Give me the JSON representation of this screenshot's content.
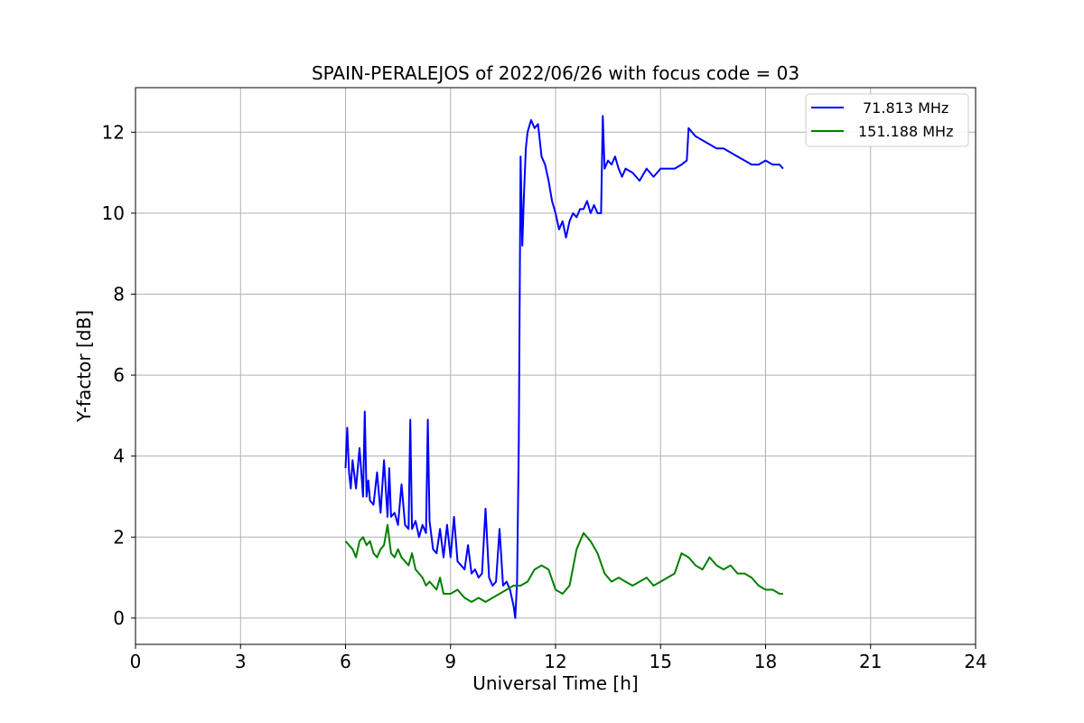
{
  "chart_data": {
    "type": "line",
    "title": "SPAIN-PERALEJOS of 2022/06/26 with focus code = 03",
    "xlabel": "Universal Time [h]",
    "ylabel": "Y-factor [dB]",
    "xlim": [
      0,
      24
    ],
    "ylim": [
      -0.65,
      13.1
    ],
    "xticks": [
      0,
      3,
      6,
      9,
      12,
      15,
      18,
      21,
      24
    ],
    "yticks": [
      0,
      2,
      4,
      6,
      8,
      10,
      12
    ],
    "grid": true,
    "legend_position": "top-right",
    "series": [
      {
        "name": "71.813 MHz",
        "color": "#0000ff",
        "x": [
          6.0,
          6.05,
          6.1,
          6.15,
          6.2,
          6.3,
          6.4,
          6.5,
          6.55,
          6.6,
          6.65,
          6.7,
          6.8,
          6.9,
          7.0,
          7.1,
          7.2,
          7.25,
          7.3,
          7.4,
          7.5,
          7.6,
          7.7,
          7.8,
          7.85,
          7.9,
          8.0,
          8.1,
          8.2,
          8.3,
          8.35,
          8.4,
          8.5,
          8.6,
          8.7,
          8.8,
          8.9,
          9.0,
          9.1,
          9.2,
          9.3,
          9.4,
          9.5,
          9.6,
          9.7,
          9.8,
          9.9,
          10.0,
          10.1,
          10.2,
          10.3,
          10.4,
          10.5,
          10.6,
          10.7,
          10.8,
          10.85,
          10.9,
          10.95,
          11.0,
          11.05,
          11.1,
          11.15,
          11.2,
          11.3,
          11.4,
          11.5,
          11.6,
          11.7,
          11.8,
          11.9,
          12.0,
          12.1,
          12.2,
          12.3,
          12.4,
          12.5,
          12.6,
          12.7,
          12.8,
          12.9,
          13.0,
          13.1,
          13.2,
          13.3,
          13.35,
          13.4,
          13.5,
          13.6,
          13.7,
          13.8,
          13.9,
          14.0,
          14.2,
          14.4,
          14.6,
          14.8,
          15.0,
          15.2,
          15.4,
          15.6,
          15.75,
          15.8,
          15.9,
          16.0,
          16.2,
          16.4,
          16.6,
          16.8,
          17.0,
          17.2,
          17.4,
          17.6,
          17.8,
          18.0,
          18.2,
          18.4,
          18.5
        ],
        "values": [
          3.7,
          4.7,
          3.6,
          3.2,
          3.9,
          3.2,
          4.2,
          3.0,
          5.1,
          3.0,
          3.4,
          2.9,
          2.8,
          3.6,
          2.6,
          3.9,
          2.5,
          3.7,
          2.5,
          2.6,
          2.3,
          3.3,
          2.3,
          2.2,
          4.9,
          2.2,
          2.4,
          2.0,
          2.3,
          2.1,
          4.9,
          2.4,
          1.7,
          1.6,
          2.2,
          1.5,
          2.3,
          1.5,
          2.5,
          1.4,
          1.3,
          1.2,
          1.8,
          1.1,
          1.2,
          1.0,
          1.1,
          2.7,
          1.0,
          0.8,
          0.9,
          2.2,
          0.8,
          0.9,
          0.7,
          0.3,
          0.0,
          0.9,
          4.3,
          11.4,
          9.2,
          10.5,
          11.6,
          12.0,
          12.3,
          12.1,
          12.2,
          11.4,
          11.2,
          10.8,
          10.3,
          10.0,
          9.6,
          9.8,
          9.4,
          9.8,
          10.0,
          9.9,
          10.1,
          10.1,
          10.3,
          10.0,
          10.2,
          10.0,
          10.0,
          12.4,
          11.1,
          11.3,
          11.2,
          11.4,
          11.1,
          10.9,
          11.1,
          11.0,
          10.8,
          11.1,
          10.9,
          11.1,
          11.1,
          11.1,
          11.2,
          11.3,
          12.1,
          12.0,
          11.9,
          11.8,
          11.7,
          11.6,
          11.6,
          11.5,
          11.4,
          11.3,
          11.2,
          11.2,
          11.3,
          11.2,
          11.2,
          11.1
        ]
      },
      {
        "name": "151.188 MHz",
        "color": "#008000",
        "x": [
          6.0,
          6.1,
          6.2,
          6.3,
          6.4,
          6.5,
          6.6,
          6.7,
          6.8,
          6.9,
          7.0,
          7.1,
          7.2,
          7.3,
          7.4,
          7.5,
          7.6,
          7.7,
          7.8,
          7.9,
          8.0,
          8.1,
          8.2,
          8.3,
          8.4,
          8.5,
          8.6,
          8.7,
          8.8,
          8.9,
          9.0,
          9.2,
          9.4,
          9.6,
          9.8,
          10.0,
          10.2,
          10.4,
          10.6,
          10.8,
          11.0,
          11.2,
          11.4,
          11.6,
          11.8,
          12.0,
          12.2,
          12.4,
          12.6,
          12.8,
          13.0,
          13.2,
          13.4,
          13.6,
          13.8,
          14.0,
          14.2,
          14.4,
          14.6,
          14.8,
          15.0,
          15.2,
          15.4,
          15.6,
          15.8,
          16.0,
          16.2,
          16.4,
          16.6,
          16.8,
          17.0,
          17.2,
          17.4,
          17.6,
          17.8,
          18.0,
          18.2,
          18.4,
          18.5
        ],
        "values": [
          1.9,
          1.8,
          1.7,
          1.5,
          1.9,
          2.0,
          1.8,
          1.9,
          1.6,
          1.5,
          1.7,
          1.8,
          2.3,
          1.6,
          1.5,
          1.7,
          1.5,
          1.4,
          1.3,
          1.6,
          1.2,
          1.1,
          1.0,
          0.8,
          0.9,
          0.8,
          0.7,
          1.0,
          0.6,
          0.6,
          0.6,
          0.7,
          0.5,
          0.4,
          0.5,
          0.4,
          0.5,
          0.6,
          0.7,
          0.8,
          0.8,
          0.9,
          1.2,
          1.3,
          1.2,
          0.7,
          0.6,
          0.8,
          1.7,
          2.1,
          1.9,
          1.6,
          1.1,
          0.9,
          1.0,
          0.9,
          0.8,
          0.9,
          1.0,
          0.8,
          0.9,
          1.0,
          1.1,
          1.6,
          1.5,
          1.3,
          1.2,
          1.5,
          1.3,
          1.2,
          1.3,
          1.1,
          1.1,
          1.0,
          0.8,
          0.7,
          0.7,
          0.6,
          0.6
        ]
      }
    ]
  }
}
